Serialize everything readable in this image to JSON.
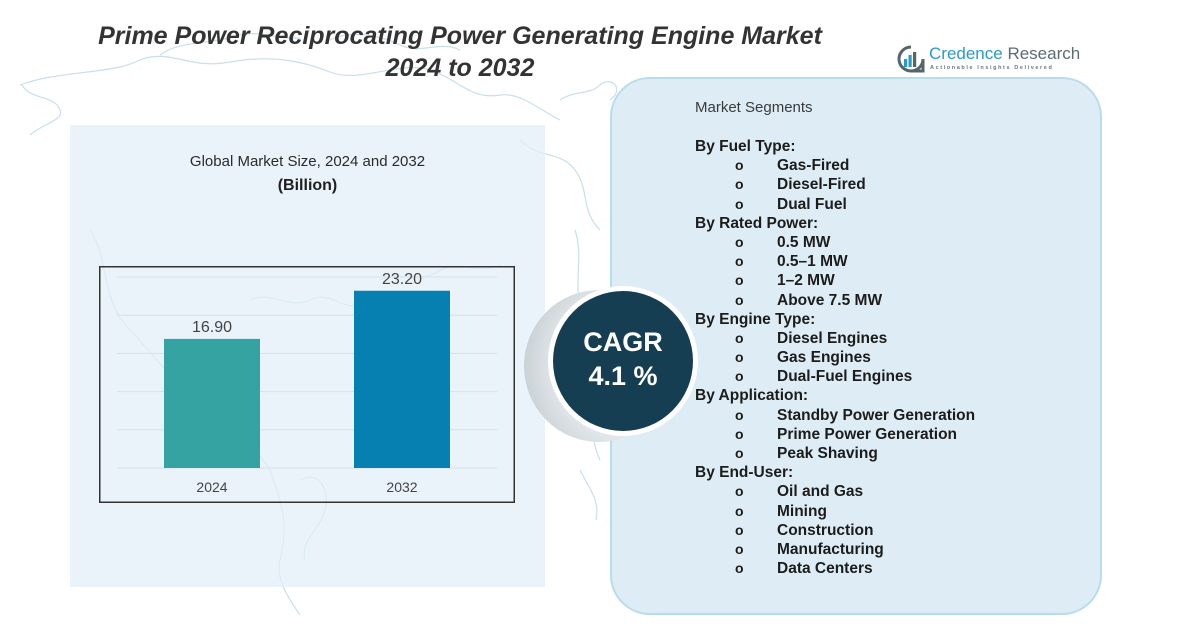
{
  "title": {
    "line1": "Prime Power Reciprocating Power Generating Engine Market",
    "line2": "2024 to 2032"
  },
  "logo": {
    "name_part1": "Credence",
    "name_part2": " Research",
    "tagline": "Actionable Insights Delivered",
    "icon": "bar-chart-in-circle-icon",
    "colors": {
      "primary": "#2a9bc9",
      "secondary": "#5e6b73"
    }
  },
  "chart_data": {
    "type": "bar",
    "title": "Global Market Size,  2024 and 2032",
    "subtitle": "(Billion)",
    "categories": [
      "2024",
      "2032"
    ],
    "values": [
      16.9,
      23.2
    ],
    "data_labels": [
      "16.90",
      "23.20"
    ],
    "colors": [
      "#35a3a2",
      "#0680b1"
    ],
    "xlabel": "",
    "ylabel": "",
    "ylim": [
      0,
      25
    ],
    "grid": true,
    "gridline_step": 5,
    "legend": "none"
  },
  "cagr": {
    "label": "CAGR",
    "value": "4.1 %"
  },
  "segments": {
    "heading": "Market Segments",
    "bullet": "o",
    "categories": [
      {
        "title": "By Fuel Type:",
        "items": [
          "Gas-Fired",
          "Diesel-Fired",
          "Dual Fuel"
        ]
      },
      {
        "title": "By Rated Power:",
        "items": [
          "0.5 MW",
          "0.5–1 MW",
          "1–2 MW",
          "Above 7.5 MW"
        ]
      },
      {
        "title": "By Engine Type:",
        "items": [
          "Diesel Engines",
          "Gas Engines",
          "Dual-Fuel Engines"
        ]
      },
      {
        "title": "By Application:",
        "items": [
          "Standby Power Generation",
          "Prime Power Generation",
          "Peak Shaving"
        ]
      },
      {
        "title": "By End-User:",
        "items": [
          "Oil and Gas",
          "Mining",
          "Construction",
          "Manufacturing",
          "Data Centers"
        ]
      }
    ]
  }
}
